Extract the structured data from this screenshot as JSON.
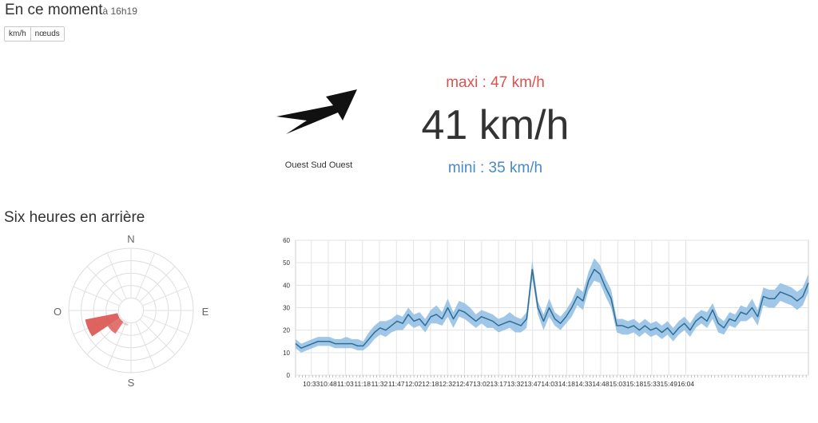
{
  "header": {
    "title": "En ce moment",
    "time": "à 16h19"
  },
  "units": [
    {
      "label": "km/h",
      "active": true
    },
    {
      "label": "nœuds",
      "active": false
    }
  ],
  "current": {
    "direction": "Ouest Sud Ouest",
    "direction_bearing_deg": 247.5,
    "speed": "41 km/h",
    "max": "maxi : 47 km/h",
    "min": "mini : 35 km/h"
  },
  "history": {
    "title": "Six heures en arrière"
  },
  "colors": {
    "max": "#d9534f",
    "min": "#4a8ac4",
    "line": "#2f6e92",
    "band": "#8fbde3",
    "rose": "#d9534f"
  },
  "chart_data": [
    {
      "type": "radar",
      "compass_labels": [
        "N",
        "E",
        "S",
        "O"
      ],
      "sectors": [
        {
          "bearing_start": 236.25,
          "bearing_end": 258.75,
          "inner": 0.22,
          "outer": 0.75,
          "opacity": 0.9
        },
        {
          "bearing_start": 213.75,
          "bearing_end": 236.25,
          "inner": 0.22,
          "outer": 0.45,
          "opacity": 0.8
        },
        {
          "bearing_start": 191.25,
          "bearing_end": 213.75,
          "inner": 0.22,
          "outer": 0.25,
          "opacity": 0.3
        }
      ]
    },
    {
      "type": "area",
      "ylim": [
        0,
        60
      ],
      "yticks": [
        0,
        10,
        20,
        30,
        40,
        50,
        60
      ],
      "x_tick_labels": [
        "10:33",
        "10:48",
        "11:03",
        "11:18",
        "11:32",
        "11:47",
        "12:02",
        "12:18",
        "12:32",
        "12:47",
        "13:02",
        "13:17",
        "13:32",
        "13:47",
        "14:03",
        "14:18",
        "14:33",
        "14:48",
        "15:03",
        "15:18",
        "15:33",
        "15:49",
        "16:04"
      ],
      "x_start_minutes": 619,
      "x_end_minutes": 979,
      "x_tick_first_minutes": 633,
      "x_tick_step_minutes": 15.1,
      "series": [
        {
          "kind": "mean_with_range",
          "points": [
            [
              619,
              14,
              12,
              16
            ],
            [
              624,
              12,
              10,
              14
            ],
            [
              629,
              13,
              11,
              15
            ],
            [
              634,
              14,
              12,
              16
            ],
            [
              639,
              15,
              13,
              17
            ],
            [
              644,
              15,
              13,
              17
            ],
            [
              649,
              15,
              13,
              17
            ],
            [
              654,
              14,
              12,
              16
            ],
            [
              659,
              14,
              12,
              16
            ],
            [
              664,
              14,
              12,
              17
            ],
            [
              669,
              14,
              12,
              16
            ],
            [
              674,
              13,
              11,
              16
            ],
            [
              679,
              13,
              11,
              15
            ],
            [
              684,
              16,
              13,
              19
            ],
            [
              689,
              19,
              16,
              22
            ],
            [
              694,
              21,
              18,
              24
            ],
            [
              699,
              20,
              17,
              24
            ],
            [
              704,
              22,
              19,
              25
            ],
            [
              709,
              24,
              20,
              27
            ],
            [
              714,
              23,
              20,
              26
            ],
            [
              719,
              27,
              23,
              30
            ],
            [
              724,
              24,
              21,
              27
            ],
            [
              729,
              25,
              22,
              28
            ],
            [
              734,
              22,
              19,
              25
            ],
            [
              739,
              26,
              23,
              29
            ],
            [
              744,
              27,
              23,
              31
            ],
            [
              749,
              25,
              22,
              28
            ],
            [
              754,
              30,
              26,
              34
            ],
            [
              759,
              25,
              21,
              28
            ],
            [
              764,
              29,
              26,
              33
            ],
            [
              769,
              28,
              25,
              32
            ],
            [
              774,
              26,
              23,
              30
            ],
            [
              779,
              24,
              21,
              27
            ],
            [
              784,
              26,
              23,
              29
            ],
            [
              789,
              25,
              21,
              28
            ],
            [
              794,
              24,
              21,
              27
            ],
            [
              799,
              22,
              19,
              25
            ],
            [
              804,
              23,
              20,
              26
            ],
            [
              809,
              24,
              21,
              28
            ],
            [
              814,
              23,
              19,
              26
            ],
            [
              819,
              22,
              19,
              25
            ],
            [
              824,
              25,
              21,
              28
            ],
            [
              829,
              47,
              43,
              51
            ],
            [
              834,
              30,
              27,
              33
            ],
            [
              839,
              24,
              20,
              27
            ],
            [
              844,
              30,
              26,
              34
            ],
            [
              849,
              25,
              22,
              28
            ],
            [
              854,
              23,
              20,
              26
            ],
            [
              859,
              26,
              23,
              29
            ],
            [
              864,
              30,
              26,
              33
            ],
            [
              869,
              35,
              31,
              39
            ],
            [
              874,
              33,
              29,
              37
            ],
            [
              879,
              42,
              38,
              46
            ],
            [
              884,
              47,
              42,
              52
            ],
            [
              889,
              45,
              41,
              49
            ],
            [
              894,
              39,
              35,
              43
            ],
            [
              899,
              34,
              30,
              38
            ],
            [
              904,
              22,
              19,
              25
            ],
            [
              909,
              22,
              18,
              25
            ],
            [
              914,
              21,
              18,
              24
            ],
            [
              919,
              22,
              19,
              25
            ],
            [
              924,
              20,
              17,
              23
            ],
            [
              929,
              22,
              19,
              25
            ],
            [
              934,
              20,
              17,
              23
            ],
            [
              939,
              21,
              18,
              24
            ],
            [
              944,
              19,
              16,
              22
            ],
            [
              949,
              21,
              18,
              24
            ],
            [
              954,
              18,
              15,
              21
            ],
            [
              959,
              21,
              18,
              24
            ],
            [
              964,
              23,
              20,
              26
            ],
            [
              969,
              20,
              17,
              23
            ],
            [
              974,
              24,
              21,
              27
            ],
            [
              979,
              26,
              23,
              29
            ],
            [
              984,
              24,
              21,
              28
            ],
            [
              989,
              29,
              25,
              32
            ],
            [
              994,
              23,
              19,
              26
            ],
            [
              999,
              21,
              18,
              24
            ],
            [
              1004,
              25,
              22,
              28
            ],
            [
              1009,
              24,
              21,
              27
            ],
            [
              1014,
              28,
              24,
              31
            ],
            [
              1019,
              27,
              24,
              30
            ],
            [
              1024,
              30,
              26,
              34
            ],
            [
              1029,
              26,
              22,
              29
            ],
            [
              1034,
              35,
              31,
              39
            ],
            [
              1039,
              34,
              30,
              38
            ],
            [
              1044,
              34,
              30,
              38
            ],
            [
              1049,
              37,
              33,
              41
            ],
            [
              1054,
              36,
              32,
              40
            ],
            [
              1059,
              35,
              31,
              39
            ],
            [
              1064,
              33,
              29,
              37
            ],
            [
              1069,
              35,
              31,
              39
            ],
            [
              1074,
              41,
              37,
              45
            ]
          ]
        }
      ]
    }
  ]
}
